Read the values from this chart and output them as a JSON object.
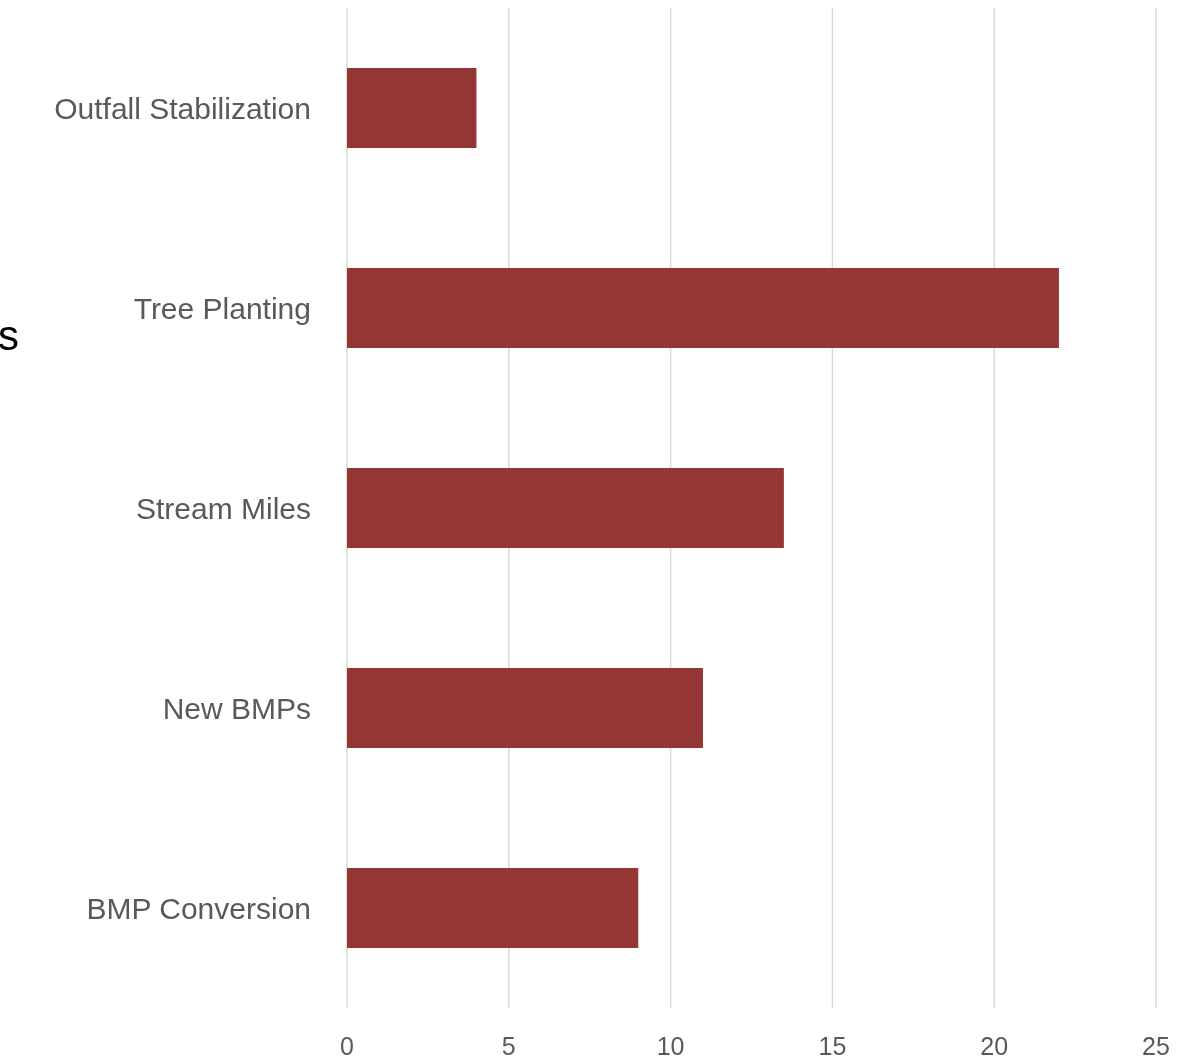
{
  "chart_data": {
    "type": "bar",
    "orientation": "horizontal",
    "ylabel": "s",
    "categories": [
      "Outfall Stabilization",
      "Tree Planting",
      "Stream Miles",
      "New BMPs",
      "BMP Conversion"
    ],
    "values": [
      4,
      22,
      13.5,
      11,
      9
    ],
    "color": "#943634",
    "xlim": [
      0,
      25
    ],
    "xticks": [
      0,
      5,
      10,
      15,
      20,
      25
    ],
    "grid": "x"
  }
}
